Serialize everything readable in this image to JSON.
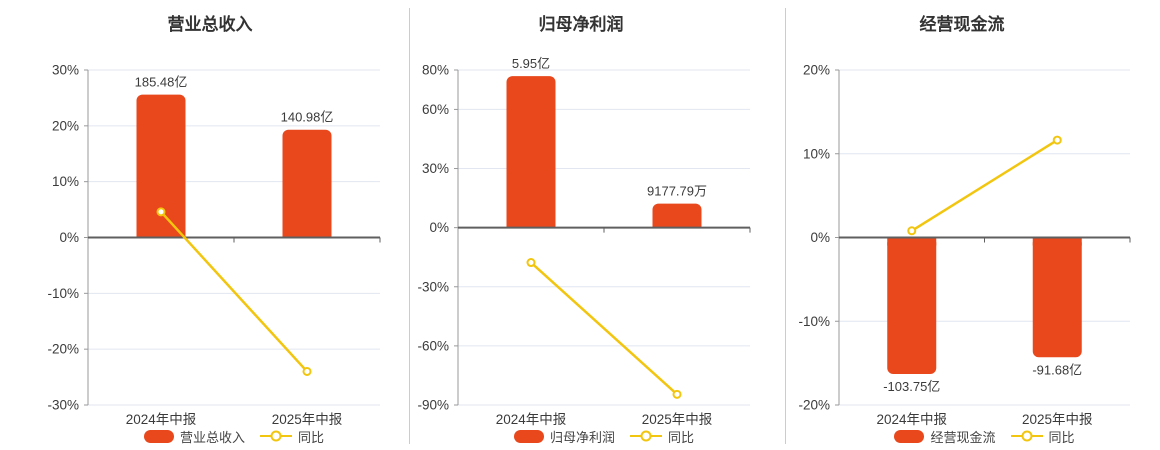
{
  "chart_data": [
    {
      "type": "bar",
      "panel": "revenue",
      "title": "营业总收入",
      "categories": [
        "2024年中报",
        "2025年中报"
      ],
      "bars": {
        "name": "营业总收入",
        "value_labels": [
          "185.48亿",
          "140.98亿"
        ],
        "height_on_pct_axis": [
          25.6,
          19.3
        ]
      },
      "line": {
        "name": "同比",
        "values_pct": [
          4.6,
          -23.99
        ]
      },
      "y_ticks_pct": [
        30,
        20,
        10,
        0,
        -10,
        -20,
        -30
      ],
      "ylim_pct": [
        -30,
        30
      ],
      "grid": true,
      "legend_position": "bottom"
    },
    {
      "type": "bar",
      "panel": "net-profit",
      "title": "归母净利润",
      "categories": [
        "2024年中报",
        "2025年中报"
      ],
      "bars": {
        "name": "归母净利润",
        "value_labels": [
          "5.95亿",
          "9177.79万"
        ],
        "height_on_pct_axis": [
          76.9,
          12.2
        ]
      },
      "line": {
        "name": "同比",
        "values_pct": [
          -17.7,
          -84.58
        ]
      },
      "y_ticks_pct": [
        80,
        60,
        30,
        0,
        -30,
        -60,
        -90
      ],
      "ylim_pct": [
        -90,
        80
      ],
      "grid": true,
      "legend_position": "bottom"
    },
    {
      "type": "bar",
      "panel": "operating-cash-flow",
      "title": "经营现金流",
      "categories": [
        "2024年中报",
        "2025年中报"
      ],
      "bars": {
        "name": "经营现金流",
        "value_labels": [
          "-103.75亿",
          "-91.68亿"
        ],
        "height_on_pct_axis": [
          -16.3,
          -14.3
        ]
      },
      "line": {
        "name": "同比",
        "values_pct": [
          0.8,
          11.63
        ]
      },
      "y_ticks_pct": [
        20,
        10,
        0,
        -10,
        -20
      ],
      "ylim_pct": [
        -20,
        20
      ],
      "grid": true,
      "legend_position": "bottom"
    }
  ],
  "colors": {
    "bar": "#e8481c",
    "line": "#f2c50e",
    "grid_line": "#e1e6f0",
    "zero_axis": "#5f5f5f",
    "y_axis": "#999999",
    "label_text": "#3b3b3b",
    "title_text": "#333333",
    "divider": "#cccccc",
    "marker_fill": "#ffffff"
  }
}
